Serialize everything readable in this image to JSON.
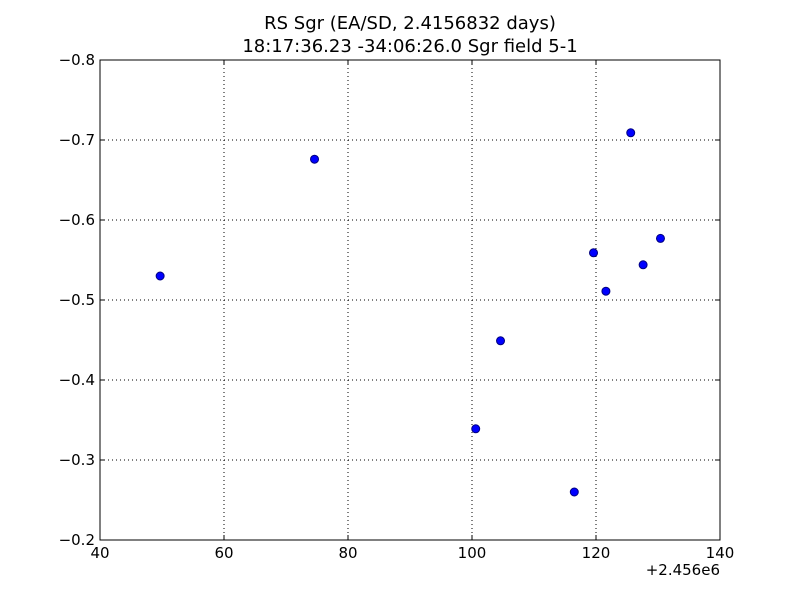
{
  "chart_data": {
    "type": "scatter",
    "title_line1": "RS Sgr (EA/SD, 2.4156832 days)",
    "title_line2": "18:17:36.23 -34:06:26.0 Sgr field 5-1",
    "xlabel": "",
    "ylabel": "",
    "x_offset_label": "+2.456e6",
    "xlim": [
      40,
      140
    ],
    "ylim": [
      -0.2,
      -0.8
    ],
    "y_inverted": true,
    "grid": true,
    "x_ticks": [
      40,
      60,
      80,
      100,
      120,
      140
    ],
    "y_ticks": [
      -0.2,
      -0.3,
      -0.4,
      -0.5,
      -0.6,
      -0.7,
      -0.8
    ],
    "x_tick_labels": [
      "40",
      "60",
      "80",
      "100",
      "120",
      "140"
    ],
    "y_tick_labels": [
      "−0.2",
      "−0.3",
      "−0.4",
      "−0.5",
      "−0.6",
      "−0.7",
      "−0.8"
    ],
    "marker_color": "#0000ff",
    "marker_edge_color": "#000080",
    "series": [
      {
        "points": [
          {
            "x": 49.7,
            "y": -0.53
          },
          {
            "x": 74.6,
            "y": -0.676
          },
          {
            "x": 100.6,
            "y": -0.339
          },
          {
            "x": 104.6,
            "y": -0.449
          },
          {
            "x": 116.5,
            "y": -0.26
          },
          {
            "x": 119.6,
            "y": -0.559
          },
          {
            "x": 121.6,
            "y": -0.511
          },
          {
            "x": 125.6,
            "y": -0.709
          },
          {
            "x": 127.6,
            "y": -0.544
          },
          {
            "x": 130.4,
            "y": -0.577
          }
        ]
      }
    ]
  }
}
